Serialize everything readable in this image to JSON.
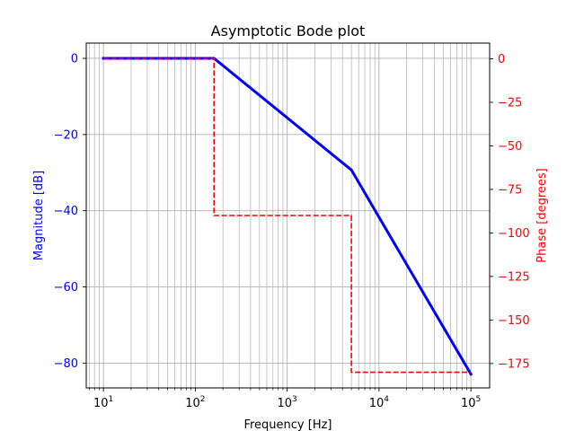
{
  "chart_data": {
    "type": "line",
    "title": "Asymptotic Bode plot",
    "xlabel": "Frequency [Hz]",
    "xscale": "log",
    "xlim": [
      6.5,
      160000
    ],
    "grid": "major and minor",
    "x_ticks": [
      {
        "value": 10,
        "base": "10",
        "exp": "1"
      },
      {
        "value": 100,
        "base": "10",
        "exp": "2"
      },
      {
        "value": 1000,
        "base": "10",
        "exp": "3"
      },
      {
        "value": 10000,
        "base": "10",
        "exp": "4"
      },
      {
        "value": 100000,
        "base": "10",
        "exp": "5"
      }
    ],
    "left_axis": {
      "label": "Magnitude [dB]",
      "color": "#0000ff",
      "ylim": [
        -86.5,
        4
      ],
      "ticks": [
        {
          "value": 0,
          "label": "0"
        },
        {
          "value": -20,
          "label": "−20"
        },
        {
          "value": -40,
          "label": "−40"
        },
        {
          "value": -60,
          "label": "−60"
        },
        {
          "value": -80,
          "label": "−80"
        }
      ]
    },
    "right_axis": {
      "label": "Phase [degrees]",
      "color": "#ff0000",
      "ylim": [
        -189,
        9
      ],
      "ticks": [
        {
          "value": 0,
          "label": "0"
        },
        {
          "value": -25,
          "label": "−25"
        },
        {
          "value": -50,
          "label": "−50"
        },
        {
          "value": -75,
          "label": "−75"
        },
        {
          "value": -100,
          "label": "−100"
        },
        {
          "value": -125,
          "label": "−125"
        },
        {
          "value": -150,
          "label": "−150"
        },
        {
          "value": -175,
          "label": "−175"
        }
      ]
    },
    "series": [
      {
        "axis": "left",
        "style": "solid",
        "color": "#0000ff",
        "points": [
          [
            10,
            0
          ],
          [
            160,
            0
          ],
          [
            5000,
            -29.3
          ],
          [
            100000,
            -82.9
          ]
        ]
      },
      {
        "axis": "right",
        "style": "dashed",
        "color": "#ff0000",
        "points": [
          [
            10,
            0
          ],
          [
            160,
            0
          ],
          [
            160,
            -90
          ],
          [
            5000,
            -90
          ],
          [
            5000,
            -180
          ],
          [
            100000,
            -180
          ]
        ]
      }
    ]
  }
}
